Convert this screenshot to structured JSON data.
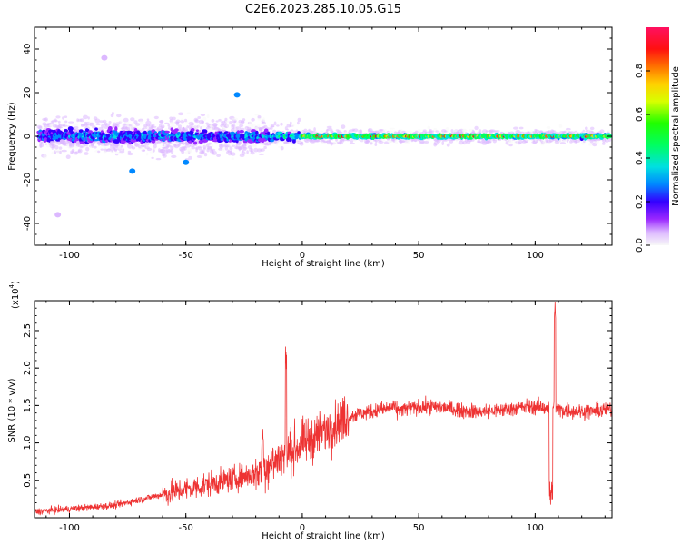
{
  "title": "C2E6.2023.285.10.05.G15",
  "chart_data": [
    {
      "type": "heatmap",
      "xlabel": "Height of straight line (km)",
      "ylabel": "Frequency (Hz)",
      "xlim": [
        -115,
        133
      ],
      "ylim": [
        -50,
        50
      ],
      "x_ticks": [
        -100,
        -50,
        0,
        50,
        100
      ],
      "y_ticks": [
        -40,
        -20,
        0,
        20,
        40
      ],
      "grid": false,
      "colorbar": {
        "label": "Normalized spectral amplitude",
        "range": [
          0,
          1
        ],
        "ticks": [
          "0.0",
          "0.2",
          "0.4",
          "0.6",
          "0.8"
        ]
      },
      "description_points": [
        {
          "x": -28,
          "y": 19,
          "amp": 0.35
        },
        {
          "x": -85,
          "y": 36,
          "amp": 0.1
        },
        {
          "x": -105,
          "y": -36,
          "amp": 0.1
        },
        {
          "x": -73,
          "y": -16,
          "amp": 0.3
        },
        {
          "x": -50,
          "y": -12,
          "amp": 0.3
        }
      ]
    },
    {
      "type": "line",
      "xlabel": "Height of straight line (km)",
      "ylabel": "SNR (10 * v/v)",
      "y_scale_label": "(x10",
      "y_scale_exp": "4",
      "xlim": [
        -115,
        133
      ],
      "ylim": [
        0,
        29000
      ],
      "x_ticks": [
        -100,
        -50,
        0,
        50,
        100
      ],
      "y_ticks": [
        "0.5",
        "1.0",
        "1.5",
        "2.0",
        "2.5"
      ],
      "y_tick_values": [
        5000,
        10000,
        15000,
        20000,
        25000
      ],
      "grid": false,
      "color": "#ee3333",
      "spikes": [
        {
          "x": -7,
          "y": 23000
        },
        {
          "x": -17,
          "y": 12000
        },
        {
          "x": 107,
          "y": 28000
        },
        {
          "x": 108.5,
          "y": 29000
        }
      ]
    }
  ]
}
